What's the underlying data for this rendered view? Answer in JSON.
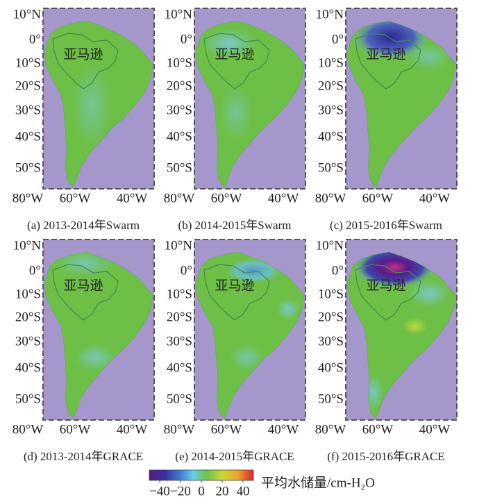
{
  "panels": [
    {
      "caption": "(a) 2013-2014年Swarm",
      "region_label": "亚马逊"
    },
    {
      "caption": "(b) 2014-2015年Swarm",
      "region_label": "亚马逊"
    },
    {
      "caption": "(c) 2015-2016年Swarm",
      "region_label": "亚马逊"
    },
    {
      "caption": "(d) 2013-2014年GRACE",
      "region_label": "亚马逊"
    },
    {
      "caption": "(e) 2014-2015年GRACE",
      "region_label": "亚马逊"
    },
    {
      "caption": "(f) 2015-2016年GRACE",
      "region_label": "亚马逊"
    }
  ],
  "map_axes": {
    "lat_labels": [
      "10°N",
      "0°",
      "10°S",
      "20°S",
      "30°S",
      "40°S",
      "50°S"
    ],
    "lon_labels": [
      "80°W",
      "60°W",
      "40°W"
    ]
  },
  "colorbar": {
    "ticks": [
      {
        "value": -40,
        "label": "−40"
      },
      {
        "value": -20,
        "label": "−20"
      },
      0,
      20,
      40
    ],
    "clim": [
      -50,
      50
    ],
    "label": "平均水储量/cm-H₂O"
  }
}
